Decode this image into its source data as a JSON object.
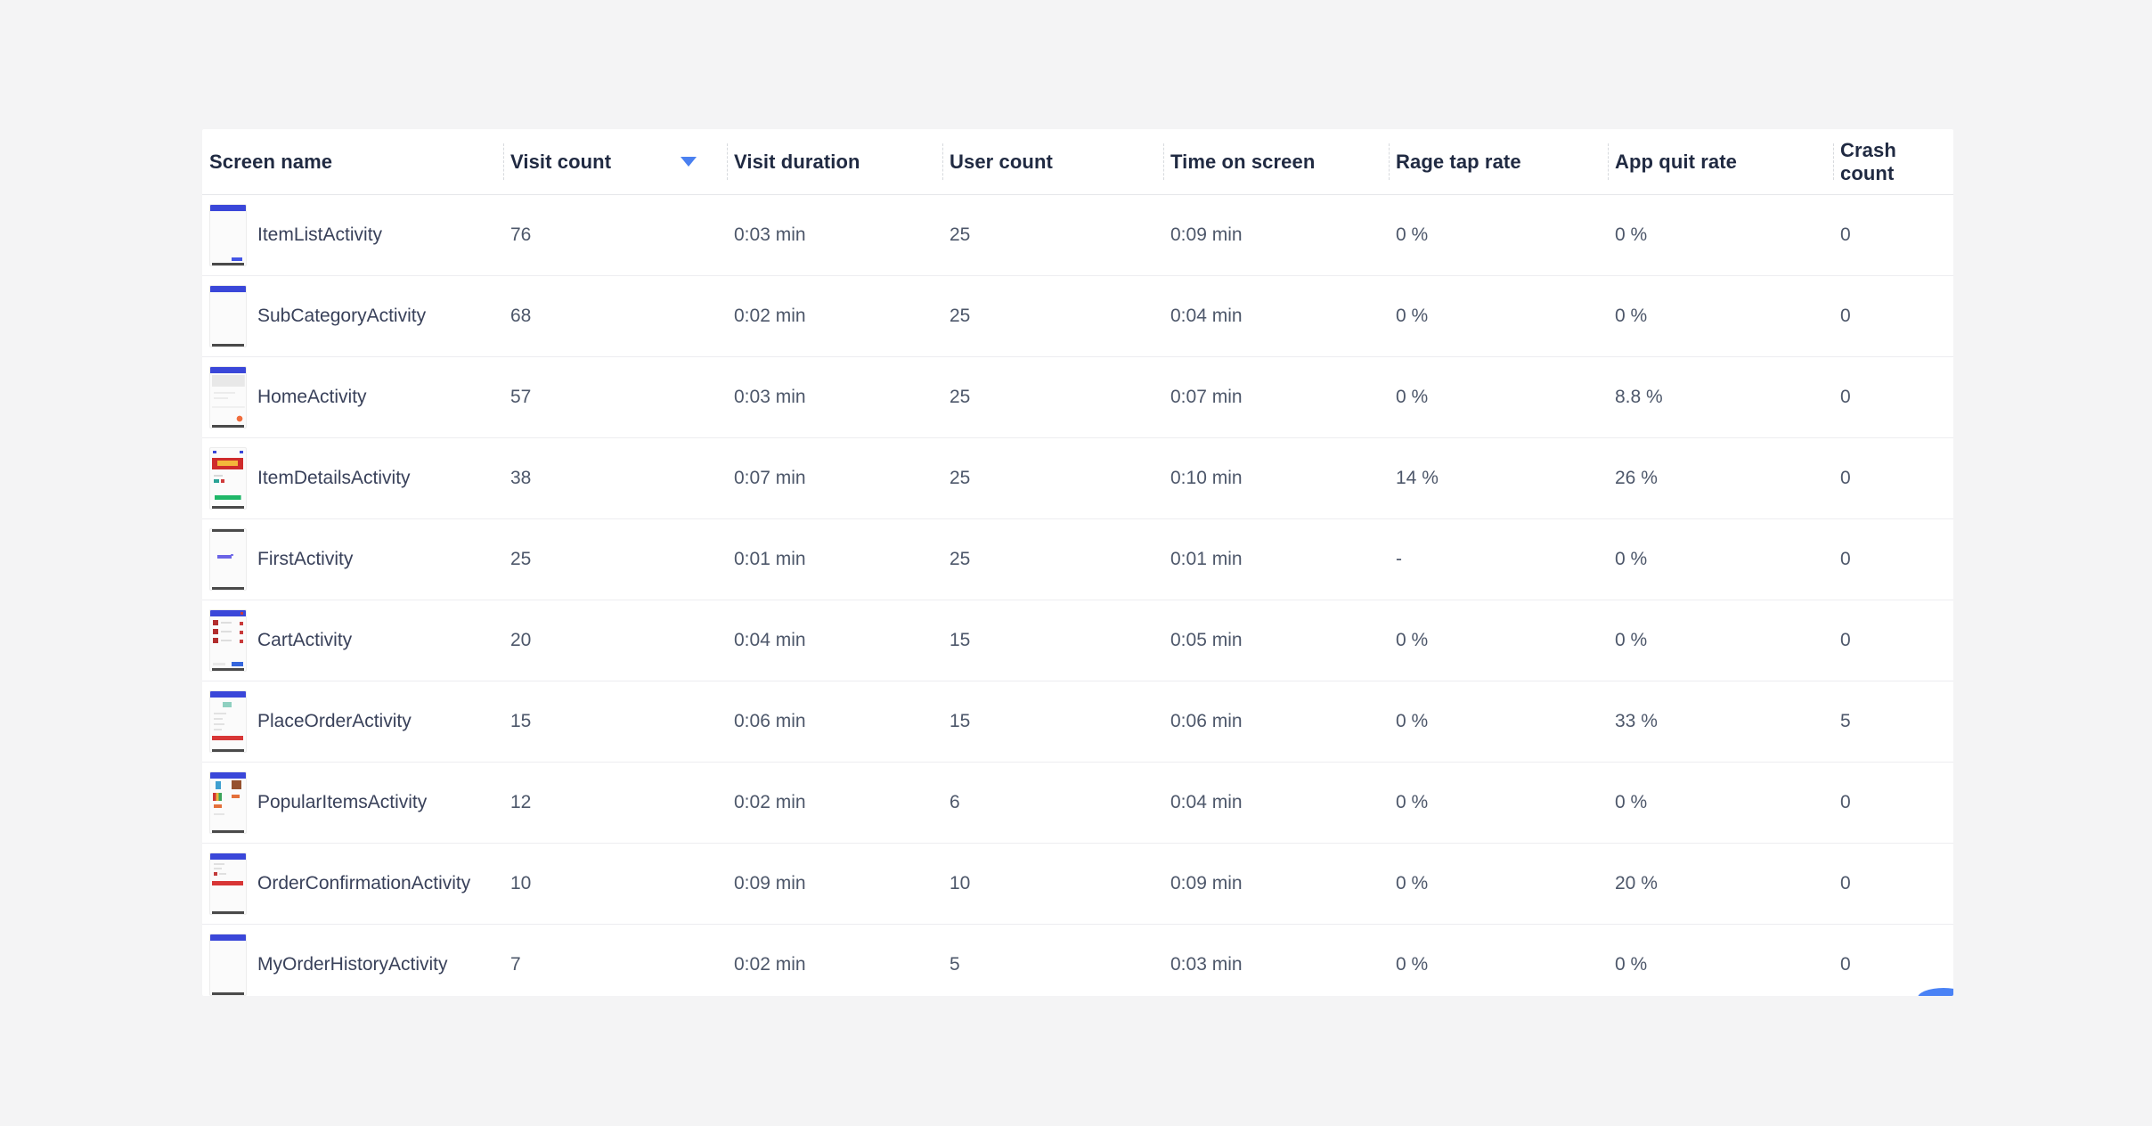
{
  "colors": {
    "page_bg": "#f4f4f5",
    "card_bg": "#ffffff",
    "accent_blue": "#4a80f0",
    "header_text": "#202a42",
    "cell_text": "#4d576a",
    "thumb_app_bar": "#3a47d9"
  },
  "table": {
    "columns": [
      {
        "key": "screen_name",
        "label": "Screen name",
        "sorted": false
      },
      {
        "key": "visit_count",
        "label": "Visit count",
        "sorted": true
      },
      {
        "key": "visit_duration",
        "label": "Visit duration",
        "sorted": false
      },
      {
        "key": "user_count",
        "label": "User count",
        "sorted": false
      },
      {
        "key": "time_on_screen",
        "label": "Time on screen",
        "sorted": false
      },
      {
        "key": "rage_tap_rate",
        "label": "Rage tap rate",
        "sorted": false
      },
      {
        "key": "app_quit_rate",
        "label": "App quit rate",
        "sorted": false
      },
      {
        "key": "crash_count",
        "label": "Crash count",
        "sorted": false
      }
    ],
    "sort_icon": "caret-down-icon",
    "rows": [
      {
        "screen_name": "ItemListActivity",
        "thumb": "item-list",
        "visit_count": "76",
        "visit_duration": "0:03 min",
        "user_count": "25",
        "time_on_screen": "0:09 min",
        "rage_tap_rate": "0 %",
        "app_quit_rate": "0 %",
        "crash_count": "0"
      },
      {
        "screen_name": "SubCategoryActivity",
        "thumb": "sub-category",
        "visit_count": "68",
        "visit_duration": "0:02 min",
        "user_count": "25",
        "time_on_screen": "0:04 min",
        "rage_tap_rate": "0 %",
        "app_quit_rate": "0 %",
        "crash_count": "0"
      },
      {
        "screen_name": "HomeActivity",
        "thumb": "home",
        "visit_count": "57",
        "visit_duration": "0:03 min",
        "user_count": "25",
        "time_on_screen": "0:07 min",
        "rage_tap_rate": "0 %",
        "app_quit_rate": "8.8 %",
        "crash_count": "0"
      },
      {
        "screen_name": "ItemDetailsActivity",
        "thumb": "item-details",
        "visit_count": "38",
        "visit_duration": "0:07 min",
        "user_count": "25",
        "time_on_screen": "0:10 min",
        "rage_tap_rate": "14 %",
        "app_quit_rate": "26 %",
        "crash_count": "0"
      },
      {
        "screen_name": "FirstActivity",
        "thumb": "first",
        "visit_count": "25",
        "visit_duration": "0:01 min",
        "user_count": "25",
        "time_on_screen": "0:01 min",
        "rage_tap_rate": "-",
        "app_quit_rate": "0 %",
        "crash_count": "0"
      },
      {
        "screen_name": "CartActivity",
        "thumb": "cart",
        "visit_count": "20",
        "visit_duration": "0:04 min",
        "user_count": "15",
        "time_on_screen": "0:05 min",
        "rage_tap_rate": "0 %",
        "app_quit_rate": "0 %",
        "crash_count": "0"
      },
      {
        "screen_name": "PlaceOrderActivity",
        "thumb": "place-order",
        "visit_count": "15",
        "visit_duration": "0:06 min",
        "user_count": "15",
        "time_on_screen": "0:06 min",
        "rage_tap_rate": "0 %",
        "app_quit_rate": "33 %",
        "crash_count": "5"
      },
      {
        "screen_name": "PopularItemsActivity",
        "thumb": "popular-items",
        "visit_count": "12",
        "visit_duration": "0:02 min",
        "user_count": "6",
        "time_on_screen": "0:04 min",
        "rage_tap_rate": "0 %",
        "app_quit_rate": "0 %",
        "crash_count": "0"
      },
      {
        "screen_name": "OrderConfirmationActivity",
        "thumb": "order-confirmation",
        "visit_count": "10",
        "visit_duration": "0:09 min",
        "user_count": "10",
        "time_on_screen": "0:09 min",
        "rage_tap_rate": "0 %",
        "app_quit_rate": "20 %",
        "crash_count": "0"
      },
      {
        "screen_name": "MyOrderHistoryActivity",
        "thumb": "my-orders",
        "visit_count": "7",
        "visit_duration": "0:02 min",
        "user_count": "5",
        "time_on_screen": "0:03 min",
        "rage_tap_rate": "0 %",
        "app_quit_rate": "0 %",
        "crash_count": "0"
      }
    ]
  }
}
